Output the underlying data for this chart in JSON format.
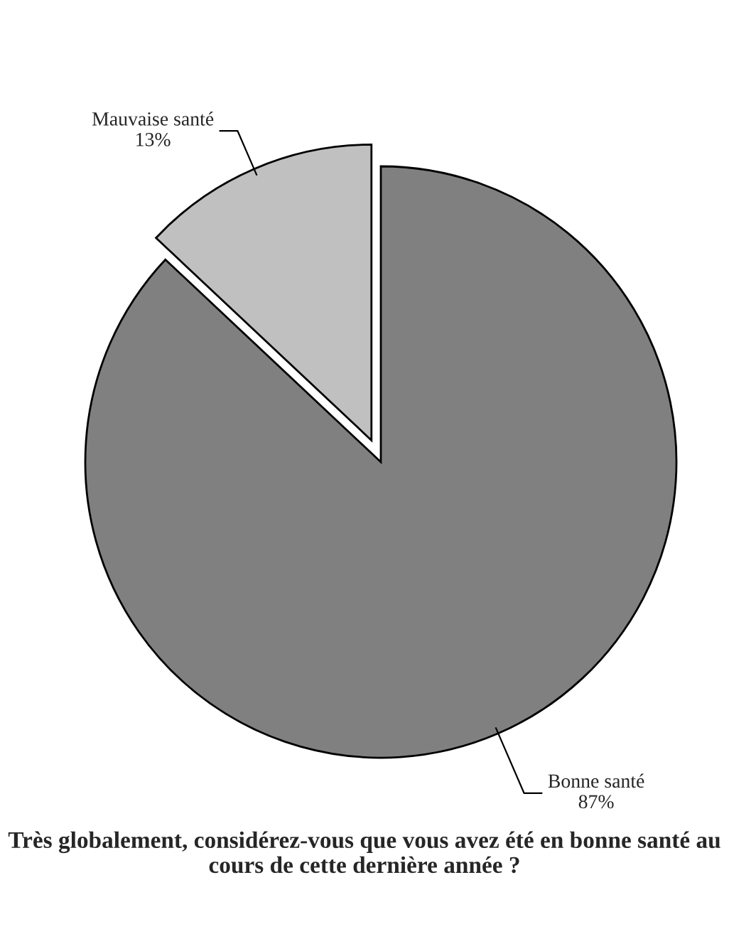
{
  "chart_data": {
    "type": "pie",
    "title": "Très globalement, considérez-vous que vous avez été en bonne santé au cours de cette dernière année ?",
    "categories": [
      "Bonne santé",
      "Mauvaise santé"
    ],
    "values": [
      87,
      13
    ],
    "value_labels": [
      "87%",
      "13%"
    ],
    "colors": [
      "#808080",
      "#c0c0c0"
    ]
  }
}
